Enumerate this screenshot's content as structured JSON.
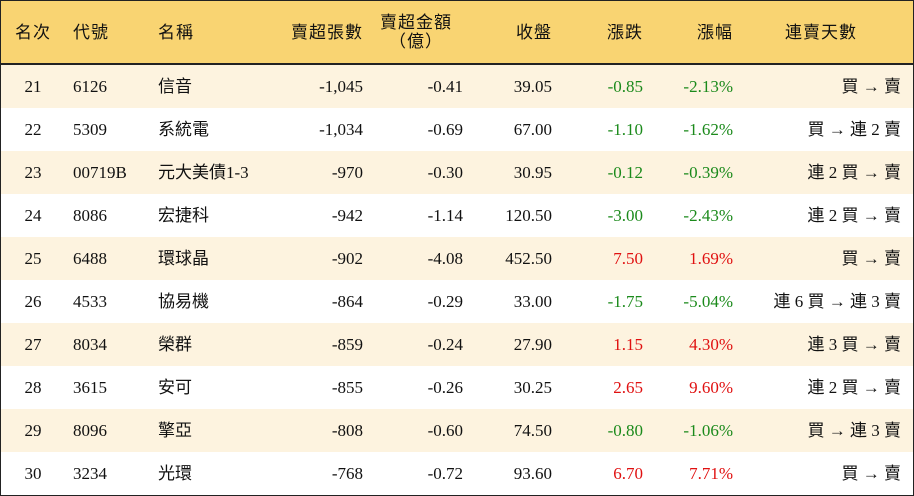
{
  "table": {
    "header": [
      "名次",
      "代號",
      "名稱",
      "賣超張數",
      "賣超金額\n（億）",
      "收盤",
      "漲跌",
      "漲幅",
      "連賣天數"
    ],
    "rows": [
      [
        "21",
        "6126",
        "信音",
        "-1,045",
        "-0.41",
        "39.05",
        "-0.85",
        "-2.13%",
        "買 → 賣"
      ],
      [
        "22",
        "5309",
        "系統電",
        "-1,034",
        "-0.69",
        "67.00",
        "-1.10",
        "-1.62%",
        "買 → 連 2 賣"
      ],
      [
        "23",
        "00719B",
        "元大美債1-3",
        "-970",
        "-0.30",
        "30.95",
        "-0.12",
        "-0.39%",
        "連 2 買 → 賣"
      ],
      [
        "24",
        "8086",
        "宏捷科",
        "-942",
        "-1.14",
        "120.50",
        "-3.00",
        "-2.43%",
        "連 2 買 → 賣"
      ],
      [
        "25",
        "6488",
        "環球晶",
        "-902",
        "-4.08",
        "452.50",
        "7.50",
        "1.69%",
        "買 → 賣"
      ],
      [
        "26",
        "4533",
        "協易機",
        "-864",
        "-0.29",
        "33.00",
        "-1.75",
        "-5.04%",
        "連 6 買 → 連 3 賣"
      ],
      [
        "27",
        "8034",
        "榮群",
        "-859",
        "-0.24",
        "27.90",
        "1.15",
        "4.30%",
        "連 3 買 → 賣"
      ],
      [
        "28",
        "3615",
        "安可",
        "-855",
        "-0.26",
        "30.25",
        "2.65",
        "9.60%",
        "連 2 買 → 賣"
      ],
      [
        "29",
        "8096",
        "擎亞",
        "-808",
        "-0.60",
        "74.50",
        "-0.80",
        "-1.06%",
        "買 → 連 3 賣"
      ],
      [
        "30",
        "3234",
        "光環",
        "-768",
        "-0.72",
        "93.60",
        "6.70",
        "7.71%",
        "買 → 賣"
      ]
    ]
  }
}
